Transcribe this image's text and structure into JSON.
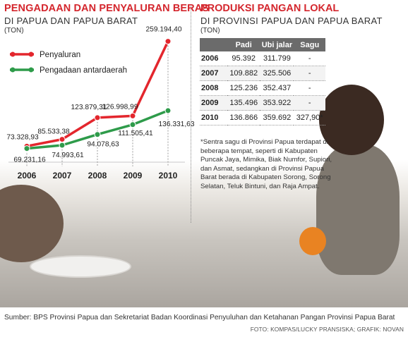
{
  "left_panel": {
    "title": "PENGADAAN DAN PENYALURAN BERAS",
    "subtitle": "DI PAPUA DAN PAPUA BARAT",
    "unit": "(TON)"
  },
  "right_panel": {
    "title": "PRODUKSI PANGAN LOKAL",
    "subtitle": "DI PROVINSI PAPUA DAN PAPUA BARAT",
    "unit": "(TON)",
    "footnote": "*Sentra sagu di Provinsi Papua terdapat di beberapa tempat, seperti di Kabupaten Puncak Jaya, Mimika, Biak Numfor, Supiori, dan Asmat, sedangkan di Provinsi Papua Barat berada di Kabupaten Sorong, Sorong Selatan, Teluk Bintuni, dan Raja Ampat."
  },
  "colors": {
    "penyaluran": "#e3262d",
    "pengadaan": "#2e9b4a",
    "accent": "#d4262d",
    "table_header": "#6b6b6b"
  },
  "chart_data": [
    {
      "type": "line",
      "title": "PENGADAAN DAN PENYALURAN BERAS",
      "categories": [
        "2006",
        "2007",
        "2008",
        "2009",
        "2010"
      ],
      "series": [
        {
          "name": "Penyaluran",
          "values": [
            73328.93,
            85533.38,
            123879.31,
            126998.99,
            259194.4
          ],
          "labels": [
            "73.328,93",
            "85.533,38",
            "123.879,31",
            "126.998,99",
            "259.194,40"
          ]
        },
        {
          "name": "Pengadaan antardaerah",
          "values": [
            69231.16,
            74993.61,
            94078.63,
            111505.41,
            136331.63
          ],
          "labels": [
            "69.231,16",
            "74.993,61",
            "94.078,63",
            "111.505,41",
            "136.331,63"
          ]
        }
      ],
      "legend": "top-left",
      "grid": false
    },
    {
      "type": "table",
      "columns": [
        "",
        "Padi",
        "Ubi jalar",
        "Sagu"
      ],
      "rows": [
        [
          "2006",
          "95.392",
          "311.799",
          "-"
        ],
        [
          "2007",
          "109.882",
          "325.506",
          "-"
        ],
        [
          "2008",
          "125.236",
          "352.437",
          "-"
        ],
        [
          "2009",
          "135.496",
          "353.922",
          "-"
        ],
        [
          "2010",
          "136.866",
          "359.692",
          "327,90*"
        ]
      ]
    }
  ],
  "footer": {
    "source": "Sumber: BPS Provinsi Papua dan Sekretariat Badan Koordinasi Penyuluhan dan Ketahanan Pangan Provinsi Papua Barat",
    "credit": "FOTO: KOMPAS/LUCKY PRANSISKA; GRAFIK: NOVAN"
  }
}
